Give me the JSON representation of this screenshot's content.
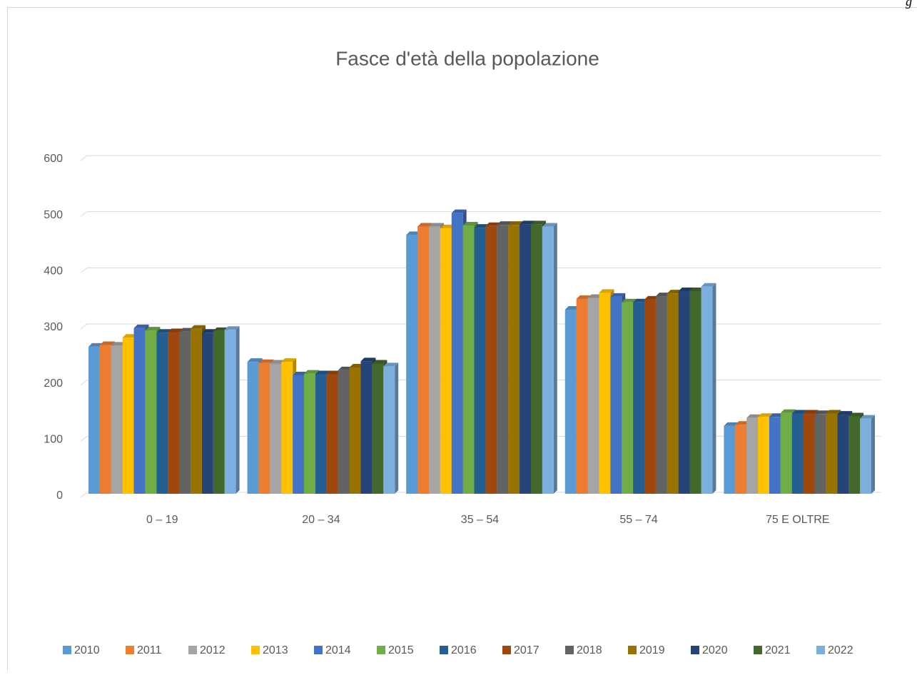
{
  "corner_text": "g",
  "chart_data": {
    "type": "bar3d",
    "title": "Fasce d'età della popolazione",
    "categories": [
      "0 – 19",
      "20 – 34",
      "35 – 54",
      "55 – 74",
      "75 E OLTRE"
    ],
    "series": [
      {
        "name": "2010",
        "color": "#5b9bd5",
        "values": [
          262,
          235,
          461,
          328,
          121
        ]
      },
      {
        "name": "2011",
        "color": "#ed7d31",
        "values": [
          265,
          233,
          476,
          347,
          123
        ]
      },
      {
        "name": "2012",
        "color": "#a5a5a5",
        "values": [
          264,
          232,
          476,
          349,
          135
        ]
      },
      {
        "name": "2013",
        "color": "#ffc000",
        "values": [
          278,
          235,
          473,
          358,
          137
        ]
      },
      {
        "name": "2014",
        "color": "#4472c4",
        "values": [
          295,
          211,
          500,
          351,
          137
        ]
      },
      {
        "name": "2015",
        "color": "#70ad47",
        "values": [
          291,
          214,
          478,
          341,
          144
        ]
      },
      {
        "name": "2016",
        "color": "#255e91",
        "values": [
          287,
          213,
          474,
          341,
          143
        ]
      },
      {
        "name": "2017",
        "color": "#9e480e",
        "values": [
          288,
          213,
          477,
          346,
          143
        ]
      },
      {
        "name": "2018",
        "color": "#636363",
        "values": [
          289,
          220,
          479,
          352,
          142
        ]
      },
      {
        "name": "2019",
        "color": "#997300",
        "values": [
          294,
          225,
          479,
          357,
          143
        ]
      },
      {
        "name": "2020",
        "color": "#264478",
        "values": [
          287,
          236,
          480,
          361,
          141
        ]
      },
      {
        "name": "2021",
        "color": "#43682b",
        "values": [
          290,
          232,
          480,
          361,
          138
        ]
      },
      {
        "name": "2022",
        "color": "#7cafdd",
        "values": [
          292,
          227,
          476,
          369,
          134
        ]
      }
    ],
    "ylim": [
      0,
      600
    ],
    "yticks": [
      0,
      100,
      200,
      300,
      400,
      500,
      600
    ],
    "grid": true,
    "legend": "bottom"
  }
}
